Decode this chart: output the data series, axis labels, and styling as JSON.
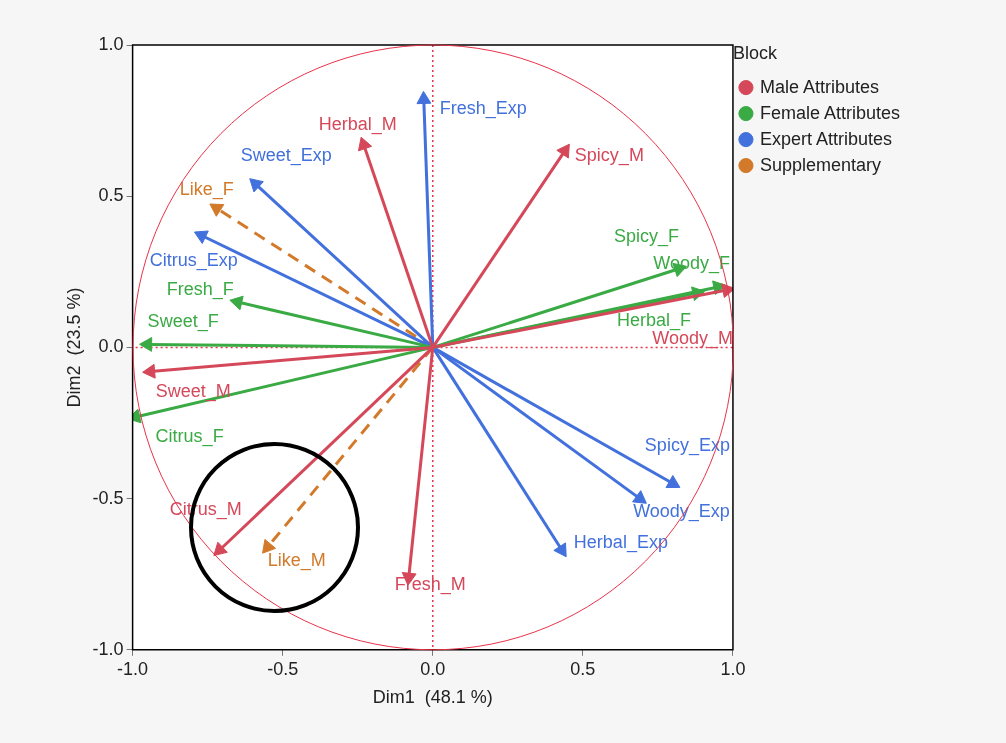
{
  "chart_data": {
    "type": "line",
    "xlabel": "Dim1  (48.1 %)",
    "ylabel": "Dim2  (23.5 %)",
    "legend_title": "Block",
    "legend": "right",
    "grid": false,
    "marker": "triangle",
    "xlim": [
      -1,
      1
    ],
    "ylim": [
      -1,
      1
    ],
    "xticks": [
      {
        "value": -1,
        "label": "-1.0"
      },
      {
        "value": -0.5,
        "label": "-0.5"
      },
      {
        "value": 0,
        "label": "0.0"
      },
      {
        "value": 0.5,
        "label": "0.5"
      },
      {
        "value": 1,
        "label": "1.0"
      }
    ],
    "yticks": [
      {
        "value": -1,
        "label": "-1.0"
      },
      {
        "value": -0.5,
        "label": "-0.5"
      },
      {
        "value": 0,
        "label": "0.0"
      },
      {
        "value": 0.5,
        "label": "0.5"
      },
      {
        "value": 1,
        "label": "1.0"
      }
    ],
    "series": [
      {
        "name": "Male Attributes",
        "color": "#d5485a",
        "line_style": "solid",
        "x": [
          0,
          -0.23,
          0,
          0.44,
          0,
          0.98,
          0,
          -0.94,
          0,
          -0.71,
          0,
          -0.08
        ],
        "values": [
          0,
          0.67,
          0,
          0.65,
          0,
          0.19,
          0,
          -0.08,
          0,
          -0.67,
          0,
          -0.76
        ]
      },
      {
        "name": "Female Attributes",
        "color": "#3aaa45",
        "line_style": "solid",
        "x": [
          0,
          0.82,
          0,
          0.95,
          0,
          0.88,
          0,
          -0.65,
          0,
          -0.95,
          0,
          -0.99
        ],
        "values": [
          0,
          0.26,
          0,
          0.2,
          0,
          0.18,
          0,
          0.15,
          0,
          0.01,
          0,
          -0.23
        ]
      },
      {
        "name": "Expert Attributes",
        "color": "#4270dc",
        "line_style": "solid",
        "x": [
          0,
          -0.03,
          0,
          -0.59,
          0,
          -0.77,
          0,
          0.8,
          0,
          0.69,
          0,
          0.43
        ],
        "values": [
          0,
          0.82,
          0,
          0.54,
          0,
          0.37,
          0,
          -0.45,
          0,
          -0.5,
          0,
          -0.67
        ]
      },
      {
        "name": "Supplementary",
        "color": "#d27a2a",
        "line_style": "dashed",
        "x": [
          0,
          -0.72,
          0,
          -0.55
        ],
        "values": [
          0,
          0.46,
          0,
          -0.66
        ]
      }
    ],
    "ref_lines": [
      {
        "axis": "x",
        "value": 0,
        "color": "#e8334a",
        "line_style": "dotted"
      },
      {
        "axis": "y",
        "value": 0,
        "color": "#e8334a",
        "line_style": "dotted"
      }
    ],
    "annotations": [
      {
        "text": "Herbal_M",
        "x": -0.23,
        "y": 0.67
      },
      {
        "text": "Spicy_M",
        "x": 0.44,
        "y": 0.65
      },
      {
        "text": "Woody_M",
        "x": 0.98,
        "y": 0.19
      },
      {
        "text": "Sweet_M",
        "x": -0.94,
        "y": -0.08
      },
      {
        "text": "Citrus_M",
        "x": -0.71,
        "y": -0.67
      },
      {
        "text": "Fresh_M",
        "x": -0.08,
        "y": -0.76
      },
      {
        "text": "Spicy_F",
        "x": 0.82,
        "y": 0.26
      },
      {
        "text": "Woody_F",
        "x": 0.95,
        "y": 0.2
      },
      {
        "text": "Herbal_F",
        "x": 0.88,
        "y": 0.18
      },
      {
        "text": "Fresh_F",
        "x": -0.65,
        "y": 0.15
      },
      {
        "text": "Sweet_F",
        "x": -0.95,
        "y": 0.01
      },
      {
        "text": "Citrus_F",
        "x": -0.99,
        "y": -0.23
      },
      {
        "text": "Fresh_Exp",
        "x": -0.03,
        "y": 0.82
      },
      {
        "text": "Sweet_Exp",
        "x": -0.59,
        "y": 0.54
      },
      {
        "text": "Citrus_Exp",
        "x": -0.77,
        "y": 0.37
      },
      {
        "text": "Spicy_Exp",
        "x": 0.8,
        "y": -0.45
      },
      {
        "text": "Woody_Exp",
        "x": 0.69,
        "y": -0.5
      },
      {
        "text": "Herbal_Exp",
        "x": 0.43,
        "y": -0.67
      },
      {
        "text": "Like_F",
        "x": -0.72,
        "y": 0.46
      },
      {
        "text": "Like_M",
        "x": -0.55,
        "y": -0.66
      }
    ]
  }
}
